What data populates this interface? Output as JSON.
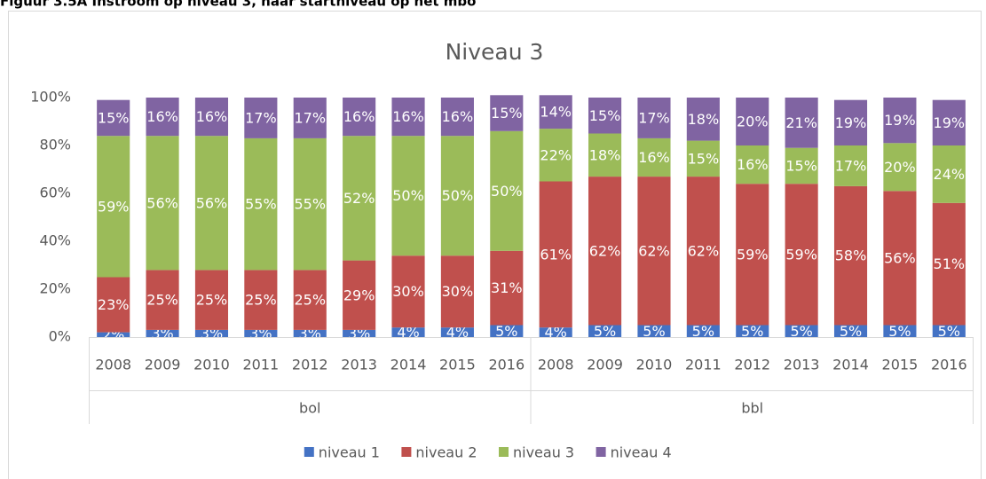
{
  "figure_title": "Figuur 3.5A Instroom op niveau 3, naar startniveau op het mbo",
  "chart_data": {
    "type": "stacked_bar",
    "title": "Niveau 3",
    "groups": [
      {
        "name": "bol",
        "categories": [
          "2008",
          "2009",
          "2010",
          "2011",
          "2012",
          "2013",
          "2014",
          "2015",
          "2016"
        ]
      },
      {
        "name": "bbl",
        "categories": [
          "2008",
          "2009",
          "2010",
          "2011",
          "2012",
          "2013",
          "2014",
          "2015",
          "2016"
        ]
      }
    ],
    "series": [
      {
        "name": "niveau 1",
        "color": "#4472c4",
        "values": [
          2,
          3,
          3,
          3,
          3,
          3,
          4,
          4,
          5,
          4,
          5,
          5,
          5,
          5,
          5,
          5,
          5,
          5
        ],
        "value_labels": [
          "2%",
          "3%",
          "3%",
          "3%",
          "3%",
          "3%",
          "4%",
          "4%",
          "5%",
          "4%",
          "5%",
          "5%",
          "5%",
          "5%",
          "5%",
          "5%",
          "5%",
          "5%"
        ]
      },
      {
        "name": "niveau 2",
        "color": "#c0504d",
        "values": [
          23,
          25,
          25,
          25,
          25,
          29,
          30,
          30,
          31,
          61,
          62,
          62,
          62,
          59,
          59,
          58,
          56,
          51
        ],
        "value_labels": [
          "23%",
          "25%",
          "25%",
          "25%",
          "25%",
          "29%",
          "30%",
          "30%",
          "31%",
          "61%",
          "62%",
          "62%",
          "62%",
          "59%",
          "59%",
          "58%",
          "56%",
          "51%"
        ]
      },
      {
        "name": "niveau 3",
        "color": "#9bbb59",
        "values": [
          59,
          56,
          56,
          55,
          55,
          52,
          50,
          50,
          50,
          22,
          18,
          16,
          15,
          16,
          15,
          17,
          20,
          24
        ],
        "value_labels": [
          "59%",
          "56%",
          "56%",
          "55%",
          "55%",
          "52%",
          "50%",
          "50%",
          "50%",
          "22%",
          "18%",
          "16%",
          "15%",
          "16%",
          "15%",
          "17%",
          "20%",
          "24%"
        ]
      },
      {
        "name": "niveau 4",
        "color": "#8064a2",
        "values": [
          15,
          16,
          16,
          17,
          17,
          16,
          16,
          16,
          15,
          14,
          15,
          17,
          18,
          20,
          21,
          19,
          19,
          19
        ],
        "value_labels": [
          "15%",
          "16%",
          "16%",
          "17%",
          "17%",
          "16%",
          "16%",
          "16%",
          "15%",
          "14%",
          "15%",
          "17%",
          "18%",
          "20%",
          "21%",
          "19%",
          "19%",
          "19%"
        ]
      }
    ],
    "ylim": [
      0,
      100
    ],
    "yticks": [
      {
        "value": 0,
        "label": "0%"
      },
      {
        "value": 20,
        "label": "20%"
      },
      {
        "value": 40,
        "label": "40%"
      },
      {
        "value": 60,
        "label": "60%"
      },
      {
        "value": 80,
        "label": "80%"
      },
      {
        "value": 100,
        "label": "100%"
      }
    ],
    "grid": false,
    "legend": "bottom"
  }
}
